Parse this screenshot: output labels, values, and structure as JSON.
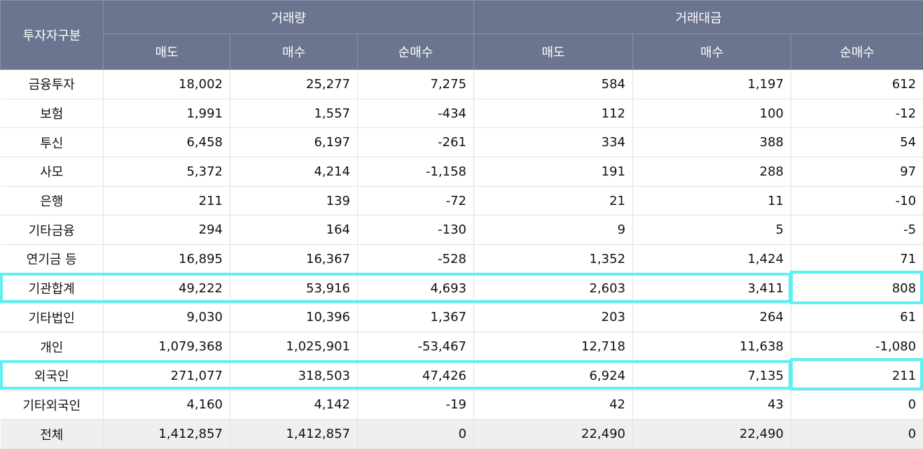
{
  "header": {
    "investor_label": "투자자구분",
    "volume_label": "거래량",
    "amount_label": "거래대금",
    "sub_labels": [
      "매도",
      "매수",
      "순매수",
      "매도",
      "매수",
      "순매수"
    ]
  },
  "rows": [
    {
      "name": "금융투자",
      "cells": [
        "18,002",
        "25,277",
        "7,275",
        "584",
        "1,197",
        "612"
      ]
    },
    {
      "name": "보험",
      "cells": [
        "1,991",
        "1,557",
        "-434",
        "112",
        "100",
        "-12"
      ]
    },
    {
      "name": "투신",
      "cells": [
        "6,458",
        "6,197",
        "-261",
        "334",
        "388",
        "54"
      ]
    },
    {
      "name": "사모",
      "cells": [
        "5,372",
        "4,214",
        "-1,158",
        "191",
        "288",
        "97"
      ]
    },
    {
      "name": "은행",
      "cells": [
        "211",
        "139",
        "-72",
        "21",
        "11",
        "-10"
      ]
    },
    {
      "name": "기타금융",
      "cells": [
        "294",
        "164",
        "-130",
        "9",
        "5",
        "-5"
      ]
    },
    {
      "name": "연기금 등",
      "cells": [
        "16,895",
        "16,367",
        "-528",
        "1,352",
        "1,424",
        "71"
      ]
    },
    {
      "name": "기관합계",
      "cells": [
        "49,222",
        "53,916",
        "4,693",
        "2,603",
        "3,411",
        "808"
      ]
    },
    {
      "name": "기타법인",
      "cells": [
        "9,030",
        "10,396",
        "1,367",
        "203",
        "264",
        "61"
      ]
    },
    {
      "name": "개인",
      "cells": [
        "1,079,368",
        "1,025,901",
        "-53,467",
        "12,718",
        "11,638",
        "-1,080"
      ]
    },
    {
      "name": "외국인",
      "cells": [
        "271,077",
        "318,503",
        "47,426",
        "6,924",
        "7,135",
        "211"
      ]
    },
    {
      "name": "기타외국인",
      "cells": [
        "4,160",
        "4,142",
        "-19",
        "42",
        "43",
        "0"
      ]
    },
    {
      "name": "전체",
      "cells": [
        "1,412,857",
        "1,412,857",
        "0",
        "22,490",
        "22,490",
        "0"
      ]
    }
  ],
  "colors": {
    "header_bg": "#6b7590",
    "highlight": "#5ff0f3",
    "total_row_bg": "#efefef"
  }
}
